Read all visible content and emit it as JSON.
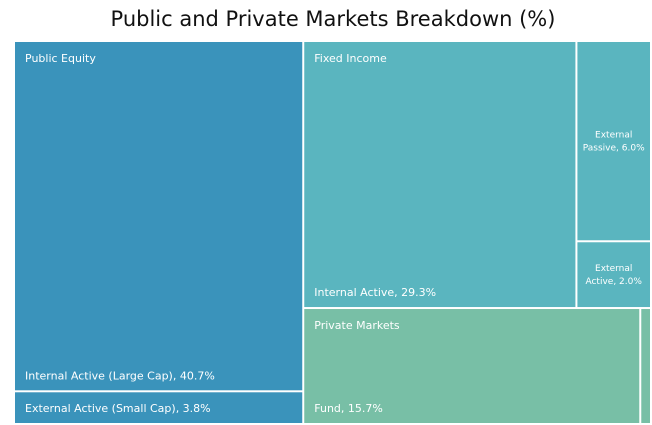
{
  "chart_data": {
    "type": "treemap",
    "title": "Public and Private Markets Breakdown (%)",
    "groups": [
      {
        "name": "Public Equity",
        "color": "#3a93bb",
        "items": [
          {
            "label": "Internal Active (Large Cap), 40.7%",
            "value": 40.7
          },
          {
            "label": "External Active (Small Cap), 3.8%",
            "value": 3.8
          }
        ]
      },
      {
        "name": "Fixed Income",
        "color": "#5ab5bf",
        "items": [
          {
            "label": "Internal Active, 29.3%",
            "value": 29.3
          },
          {
            "label": "External Passive, 6.0%",
            "value": 6.0
          },
          {
            "label": "External Active, 2.0%",
            "value": 2.0
          }
        ]
      },
      {
        "name": "Private Markets",
        "color": "#78bfa6",
        "items": [
          {
            "label": "Fund, 15.7%",
            "value": 15.7
          },
          {
            "label": null,
            "value": 0.5
          }
        ]
      }
    ]
  }
}
